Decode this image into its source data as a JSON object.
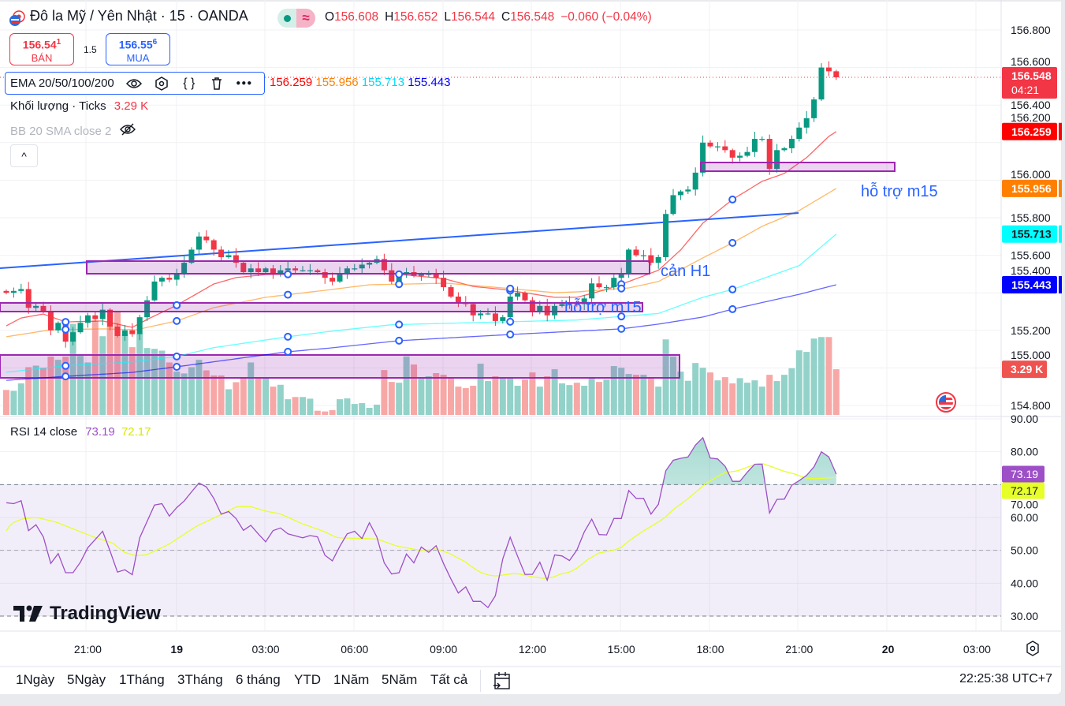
{
  "header": {
    "title": "Đô la Mỹ / Yên Nhật · 15 · OANDA",
    "market_status_icon": "market-open-dot",
    "delay_icon": "approx-icon",
    "delay_symbol": "≈",
    "ohlc": {
      "o_label": "O",
      "o": "156.608",
      "h_label": "H",
      "h": "156.652",
      "l_label": "L",
      "l": "156.544",
      "c_label": "C",
      "c": "156.548",
      "change": "−0.060 (−0.04%)"
    }
  },
  "trade": {
    "sell": {
      "price": "156.54",
      "price_sup": "1",
      "label": "BÁN"
    },
    "spread": "1.5",
    "buy": {
      "price": "156.55",
      "price_sup": "6",
      "label": "MUA"
    }
  },
  "indicators": {
    "ema": {
      "name": "EMA 20/50/100/200",
      "values": [
        "156.259",
        "155.956",
        "155.713",
        "155.443"
      ]
    },
    "volume": {
      "name": "Khối lượng · Ticks",
      "value": "3.29 K"
    },
    "bb": {
      "name": "BB 20 SMA close 2"
    },
    "rsi": {
      "name": "RSI 14 close",
      "value": "73.19",
      "ma_value": "72.17"
    }
  },
  "colors": {
    "up": "#089981",
    "down": "#f23645",
    "ema20": "#ff0000",
    "ema50": "#ff8a00",
    "ema100": "#00ffff",
    "ema200": "#0000ff",
    "rsi": "#9c4fc6",
    "rsi_ma": "#e6ff29",
    "zone": "#9c27b0",
    "trendline": "#2962ff",
    "annotation": "#2962ff"
  },
  "price_axis": {
    "labels": [
      "156.800",
      "156.600",
      "156.400",
      "156.200",
      "156.000",
      "155.800",
      "155.600",
      "155.400",
      "155.200",
      "155.000",
      "154.800"
    ]
  },
  "price_badges": [
    {
      "value": "156.548",
      "sub": "04:21",
      "color": "#f23645",
      "text": "#ffffff"
    },
    {
      "value": "156.259",
      "color": "#ff0000",
      "text": "#ffffff"
    },
    {
      "value": "155.956",
      "color": "#ff8000",
      "text": "#ffffff"
    },
    {
      "value": "155.713",
      "color": "#00ffff",
      "text": "#131722"
    },
    {
      "value": "155.443",
      "color": "#0000ff",
      "text": "#ffffff"
    }
  ],
  "volume_badge": {
    "value": "3.29 K",
    "color": "#ef5350"
  },
  "rsi_axis": {
    "labels": [
      "90.00",
      "80.00",
      "70.00",
      "60.00",
      "50.00",
      "40.00",
      "30.00"
    ]
  },
  "rsi_badges": [
    {
      "value": "73.19",
      "color": "#9c4fc6",
      "text": "#ffffff"
    },
    {
      "value": "72.17",
      "color": "#e6ff29",
      "text": "#131722"
    }
  ],
  "annotations": {
    "resistance_h1": "cản H1",
    "support_m15_a": "hỗ trợ m15",
    "support_m15_b": "hỗ trợ m15"
  },
  "time_axis": {
    "labels": [
      "21:00",
      "19",
      "03:00",
      "06:00",
      "09:00",
      "12:00",
      "15:00",
      "18:00",
      "21:00",
      "20",
      "03:00"
    ],
    "bold": [
      "19",
      "20"
    ]
  },
  "bottom_bar": {
    "ranges": [
      "1Ngày",
      "5Ngày",
      "1Tháng",
      "3Tháng",
      "6 tháng",
      "YTD",
      "1Năm",
      "5Năm",
      "Tất cả"
    ],
    "clock": "22:25:38 UTC+7"
  },
  "watermark": "TradingView",
  "chart_data": {
    "type": "candlestick",
    "symbol": "USDJPY",
    "interval_minutes": 15,
    "ylim": [
      154.75,
      156.85
    ],
    "open_first": 155.41,
    "close": [
      155.4,
      155.41,
      155.42,
      155.32,
      155.33,
      155.3,
      155.2,
      155.24,
      155.14,
      155.19,
      155.24,
      155.28,
      155.26,
      155.31,
      155.22,
      155.17,
      155.2,
      155.18,
      155.27,
      155.36,
      155.46,
      155.48,
      155.47,
      155.5,
      155.56,
      155.63,
      155.7,
      155.68,
      155.63,
      155.59,
      155.6,
      155.56,
      155.51,
      155.53,
      155.51,
      155.53,
      155.5,
      155.52,
      155.53,
      155.52,
      155.52,
      155.52,
      155.51,
      155.48,
      155.46,
      155.5,
      155.53,
      155.53,
      155.55,
      155.56,
      155.58,
      155.52,
      155.46,
      155.5,
      155.51,
      155.49,
      155.5,
      155.5,
      155.48,
      155.43,
      155.38,
      155.35,
      155.34,
      155.28,
      155.29,
      155.29,
      155.25,
      155.27,
      155.38,
      155.4,
      155.36,
      155.3,
      155.33,
      155.28,
      155.33,
      155.34,
      155.35,
      155.34,
      155.37,
      155.45,
      155.43,
      155.43,
      155.48,
      155.5,
      155.63,
      155.6,
      155.6,
      155.56,
      155.59,
      155.82,
      155.92,
      155.94,
      155.95,
      156.04,
      156.2,
      156.18,
      156.18,
      156.16,
      156.12,
      156.13,
      156.15,
      156.22,
      156.22,
      156.06,
      156.16,
      156.17,
      156.22,
      156.28,
      156.33,
      156.43,
      156.6,
      156.58,
      156.548
    ],
    "volume_k": [
      1.8,
      1.74,
      2.27,
      3.44,
      3.55,
      3.4,
      4.2,
      3.97,
      4.2,
      6.56,
      4.25,
      3.78,
      6.8,
      5.67,
      7.41,
      7.41,
      5.82,
      4.88,
      5.86,
      4.82,
      4.76,
      4.63,
      3.78,
      3.12,
      2.99,
      3.44,
      3.97,
      3.21,
      2.84,
      2.84,
      1.85,
      2.36,
      2.68,
      3.78,
      2.68,
      2.65,
      2.04,
      2.17,
      1.13,
      1.29,
      1.29,
      1.17,
      0.3,
      0.25,
      0.34,
      1.13,
      1.19,
      0.79,
      0.85,
      0.51,
      0.74,
      3.23,
      2.38,
      2.32,
      4.21,
      3.63,
      2.61,
      2.78,
      3.01,
      2.89,
      2.61,
      2.04,
      1.93,
      2.1,
      3.69,
      2.44,
      2.78,
      2.61,
      2.61,
      2.1,
      2.55,
      3.06,
      2.04,
      2.78,
      3.29,
      2.27,
      2.15,
      2.32,
      2.1,
      2.61,
      2.38,
      2.55,
      3.52,
      3.4,
      2.95,
      2.89,
      2.89,
      2.61,
      2.04,
      5.44,
      4.21,
      3.12,
      2.46,
      3.74,
      3.4,
      3.06,
      2.49,
      2.72,
      2.27,
      2.65,
      2.32,
      2.49,
      2.04,
      2.89,
      2.44,
      2.89,
      3.36,
      4.65,
      4.54,
      5.5,
      5.61,
      5.61,
      3.29
    ],
    "ema": [
      {
        "name": "EMA 20",
        "points": [
          [
            0,
            155.224
          ],
          [
            2,
            155.266
          ],
          [
            5,
            155.287
          ],
          [
            8,
            155.245
          ],
          [
            13,
            155.25
          ],
          [
            17,
            155.216
          ],
          [
            19,
            155.258
          ],
          [
            23,
            155.334
          ],
          [
            28,
            155.447
          ],
          [
            31,
            155.481
          ],
          [
            35,
            155.497
          ],
          [
            44,
            155.502
          ],
          [
            52,
            155.502
          ],
          [
            59,
            155.476
          ],
          [
            63,
            155.434
          ],
          [
            67,
            155.418
          ],
          [
            74,
            155.376
          ],
          [
            77,
            155.376
          ],
          [
            81,
            155.418
          ],
          [
            84,
            155.46
          ],
          [
            88,
            155.52
          ],
          [
            91,
            155.628
          ],
          [
            94,
            155.771
          ],
          [
            98,
            155.897
          ],
          [
            102,
            155.994
          ],
          [
            105,
            156.036
          ],
          [
            108,
            156.12
          ],
          [
            111,
            156.233
          ],
          [
            112,
            156.259
          ]
        ]
      },
      {
        "name": "EMA 50",
        "points": [
          [
            0,
            155.166
          ],
          [
            6,
            155.203
          ],
          [
            13,
            155.208
          ],
          [
            17.5,
            155.203
          ],
          [
            23,
            155.25
          ],
          [
            28,
            155.321
          ],
          [
            35,
            155.376
          ],
          [
            44,
            155.418
          ],
          [
            49,
            155.443
          ],
          [
            59.5,
            155.451
          ],
          [
            67,
            155.426
          ],
          [
            74,
            155.401
          ],
          [
            77,
            155.405
          ],
          [
            84,
            155.426
          ],
          [
            88,
            155.46
          ],
          [
            94,
            155.586
          ],
          [
            98,
            155.666
          ],
          [
            102,
            155.754
          ],
          [
            107,
            155.838
          ],
          [
            112,
            155.956
          ]
        ]
      },
      {
        "name": "EMA 100",
        "points": [
          [
            0,
            154.977
          ],
          [
            8,
            155.011
          ],
          [
            17,
            155.032
          ],
          [
            23,
            155.061
          ],
          [
            28,
            155.108
          ],
          [
            38,
            155.166
          ],
          [
            44,
            155.196
          ],
          [
            52,
            155.23
          ],
          [
            68,
            155.246
          ],
          [
            77,
            155.255
          ],
          [
            88,
            155.29
          ],
          [
            94,
            155.376
          ],
          [
            98,
            155.418
          ],
          [
            107,
            155.545
          ],
          [
            112,
            155.713
          ]
        ]
      },
      {
        "name": "EMA 200",
        "points": [
          [
            0,
            154.934
          ],
          [
            8,
            154.955
          ],
          [
            17,
            154.976
          ],
          [
            23,
            155.006
          ],
          [
            38,
            155.086
          ],
          [
            44,
            155.107
          ],
          [
            53,
            155.145
          ],
          [
            68,
            155.178
          ],
          [
            83,
            155.208
          ],
          [
            88,
            155.233
          ],
          [
            94,
            155.271
          ],
          [
            98,
            155.313
          ],
          [
            107,
            155.392
          ],
          [
            112,
            155.443
          ]
        ]
      }
    ],
    "rsi": {
      "ylim": [
        25,
        92
      ],
      "levels": [
        70,
        50,
        30
      ],
      "values": [
        64.5,
        64.2,
        65.1,
        56.0,
        57.8,
        54.1,
        46.0,
        49.0,
        43.2,
        43.2,
        46.4,
        50.8,
        53.3,
        55.8,
        49.8,
        43.4,
        44.1,
        42.6,
        53.8,
        58.8,
        63.8,
        64.2,
        60.4,
        63.0,
        65.0,
        67.8,
        70.5,
        69.3,
        65.8,
        61.0,
        61.8,
        59.7,
        56.1,
        57.6,
        55.0,
        52.6,
        56.0,
        56.8,
        55.0,
        54.4,
        53.8,
        54.5,
        54.1,
        48.5,
        46.8,
        51.2,
        55.0,
        55.8,
        53.6,
        58.4,
        54.1,
        46.2,
        42.8,
        43.2,
        48.9,
        46.2,
        51.0,
        49.4,
        51.4,
        46.0,
        41.3,
        37.0,
        38.9,
        34.5,
        34.5,
        32.6,
        36.2,
        47.4,
        54.0,
        48.2,
        42.7,
        42.7,
        46.4,
        40.9,
        48.6,
        48.3,
        46.9,
        50.1,
        55.6,
        59.5,
        54.8,
        54.7,
        59.7,
        59.7,
        68.2,
        65.8,
        65.8,
        61.0,
        64.0,
        74.2,
        77.4,
        78.0,
        78.4,
        82.0,
        84.3,
        78.1,
        77.8,
        75.6,
        71.0,
        71.0,
        73.8,
        76.2,
        76.2,
        61.4,
        65.5,
        65.6,
        69.8,
        71.2,
        72.8,
        75.4,
        80.0,
        78.4,
        73.19
      ],
      "ma_points": [
        [
          0,
          56.0
        ],
        [
          0.7,
          58.2
        ],
        [
          2.2,
          59.6
        ],
        [
          4.1,
          60.0
        ],
        [
          6.7,
          58.6
        ],
        [
          9.4,
          56.2
        ],
        [
          12.1,
          53.8
        ],
        [
          14.4,
          52.2
        ],
        [
          15.9,
          49.4
        ],
        [
          17.4,
          48.4
        ],
        [
          18.9,
          48.6
        ],
        [
          21.9,
          51.8
        ],
        [
          25.7,
          57.4
        ],
        [
          28,
          59.8
        ],
        [
          31.1,
          63.3
        ],
        [
          33,
          63.3
        ],
        [
          34.9,
          62.0
        ],
        [
          37.1,
          61.0
        ],
        [
          39.8,
          58.2
        ],
        [
          42.8,
          55.8
        ],
        [
          44.7,
          53.8
        ],
        [
          48.5,
          53.6
        ],
        [
          50.1,
          53.4
        ],
        [
          52.7,
          51.3
        ],
        [
          55.4,
          50.2
        ],
        [
          56.6,
          50.0
        ],
        [
          57.9,
          50.5
        ],
        [
          59.9,
          49.0
        ],
        [
          60.8,
          47.8
        ],
        [
          61.9,
          46.6
        ],
        [
          62.8,
          45.0
        ],
        [
          63.9,
          43.4
        ],
        [
          65,
          42.5
        ],
        [
          66.1,
          42.2
        ],
        [
          68.7,
          43.0
        ],
        [
          70.9,
          42.0
        ],
        [
          72.7,
          41.4
        ],
        [
          73.8,
          41.8
        ],
        [
          74.9,
          42.9
        ],
        [
          75.8,
          43.2
        ],
        [
          76.9,
          44.4
        ],
        [
          78.6,
          47.4
        ],
        [
          80,
          49.2
        ],
        [
          81.9,
          50.0
        ],
        [
          83,
          50.9
        ],
        [
          84.1,
          53.0
        ],
        [
          85.9,
          55.8
        ],
        [
          87.7,
          58.2
        ],
        [
          88.8,
          59.8
        ],
        [
          89.9,
          62.2
        ],
        [
          91.8,
          65.4
        ],
        [
          93,
          67.6
        ],
        [
          94.3,
          70.2
        ],
        [
          95.8,
          72.2
        ],
        [
          96.9,
          73.6
        ],
        [
          98.7,
          74.2
        ],
        [
          100.6,
          75.8
        ],
        [
          101.8,
          76.6
        ],
        [
          103.1,
          75.6
        ],
        [
          104.9,
          74.1
        ],
        [
          106.4,
          73.2
        ],
        [
          107.9,
          72.0
        ],
        [
          109,
          71.8
        ],
        [
          112,
          72.17
        ]
      ]
    }
  }
}
